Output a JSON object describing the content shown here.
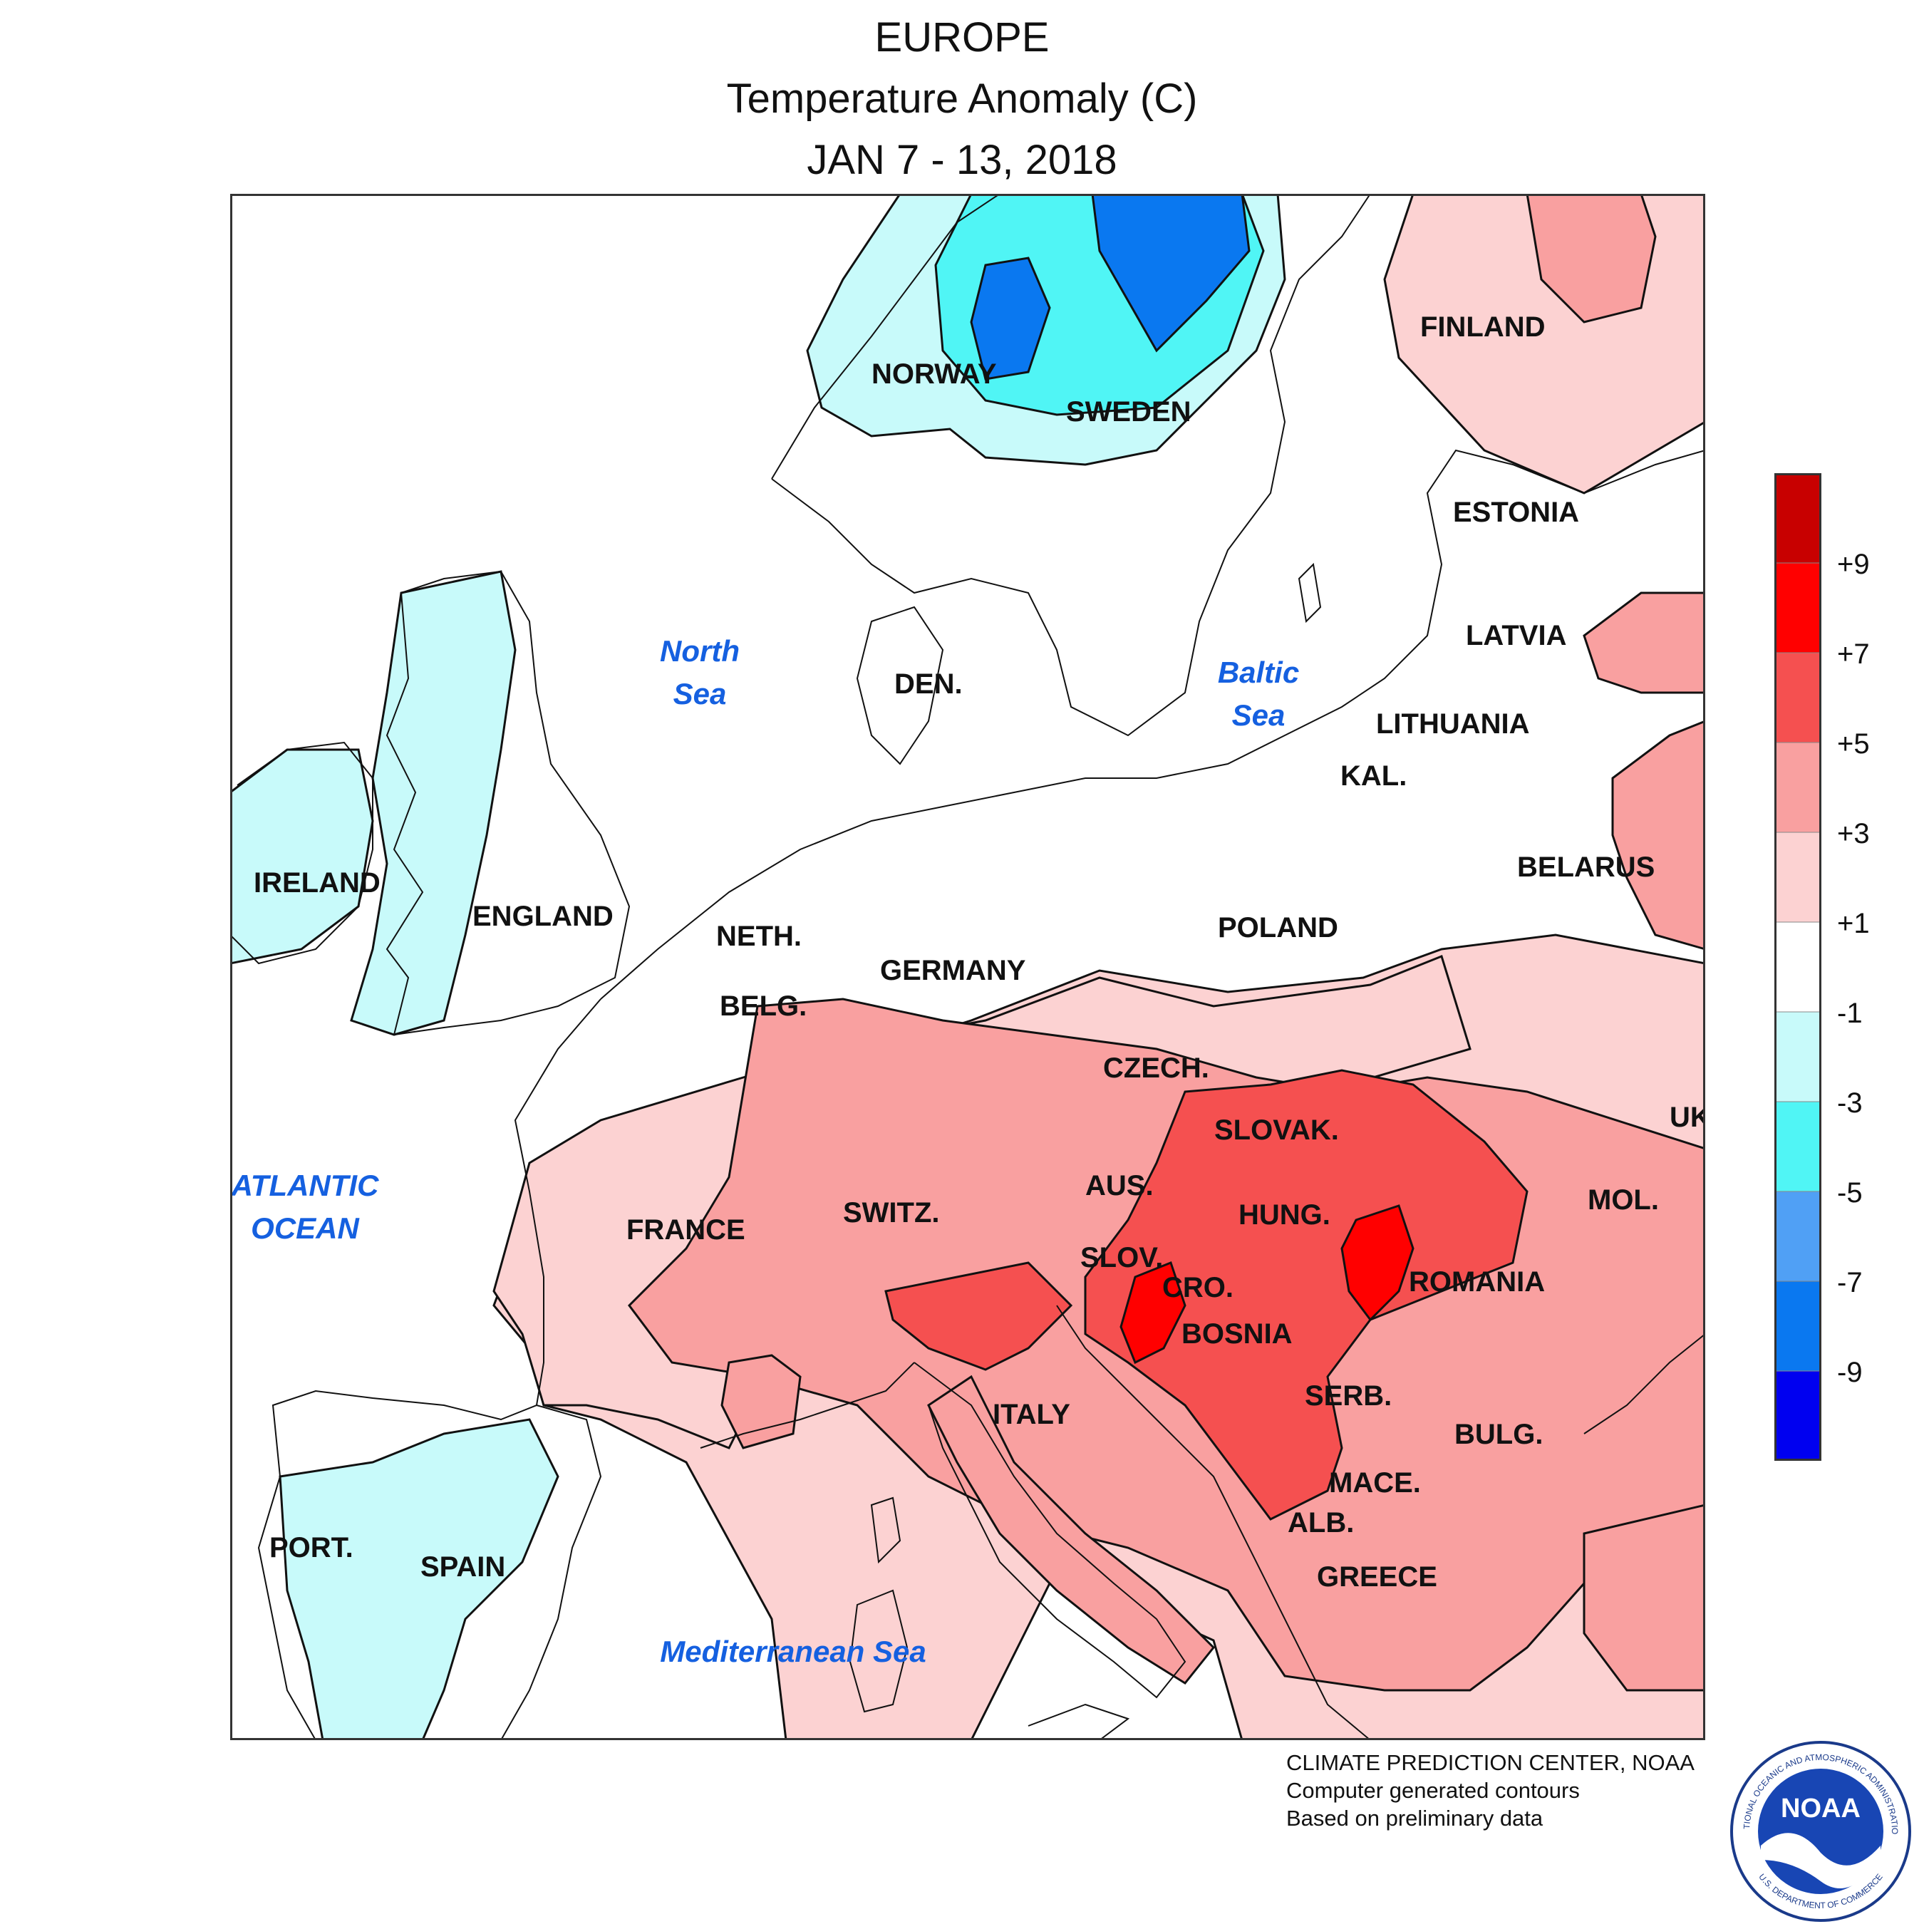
{
  "title": {
    "line1": "EUROPE",
    "line2": "Temperature Anomaly (C)",
    "line3": "JAN 7 - 13, 2018"
  },
  "countries": {
    "norway": "NORWAY",
    "sweden": "SWEDEN",
    "finland": "FINLAND",
    "estonia": "ESTONIA",
    "latvia": "LATVIA",
    "lithuania": "LITHUANIA",
    "kal": "KAL.",
    "belarus": "BELARUS",
    "poland": "POLAND",
    "den": "DEN.",
    "ireland": "IRELAND",
    "england": "ENGLAND",
    "neth": "NETH.",
    "belg": "BELG.",
    "germany": "GERMANY",
    "czech": "CZECH.",
    "slovak": "SLOVAK.",
    "aus": "AUS.",
    "hung": "HUNG.",
    "switz": "SWITZ.",
    "france": "FRANCE",
    "slov": "SLOV.",
    "cro": "CRO.",
    "bosnia": "BOSNIA",
    "romania": "ROMANIA",
    "mol": "MOL.",
    "uk": "UK",
    "serb": "SERB.",
    "bulg": "BULG.",
    "mace": "MACE.",
    "alb": "ALB.",
    "greece": "GREECE",
    "italy": "ITALY",
    "port": "PORT.",
    "spain": "SPAIN"
  },
  "seas": {
    "north_1": "North",
    "north_2": "Sea",
    "baltic_1": "Baltic",
    "baltic_2": "Sea",
    "atlantic_1": "ATLANTIC",
    "atlantic_2": "OCEAN",
    "med": "Mediterranean Sea"
  },
  "legend": {
    "labels": [
      "+9",
      "+7",
      "+5",
      "+3",
      "+1",
      "-1",
      "-3",
      "-5",
      "-7",
      "-9"
    ],
    "colors": [
      "#c80000",
      "#ff0000",
      "#f55050",
      "#f9a0a0",
      "#fcd2d2",
      "#ffffff",
      "#c8fafa",
      "#50f5f5",
      "#50a0f5",
      "#0a78f0",
      "#0000f0"
    ]
  },
  "colors": {
    "sea_label": "#1560e0"
  },
  "credits": {
    "line1": "CLIMATE PREDICTION CENTER, NOAA",
    "line2": "Computer generated contours",
    "line3": "Based on preliminary data"
  },
  "logo": {
    "text": "NOAA",
    "ring_top": "NATIONAL OCEANIC AND ATMOSPHERIC ADMINISTRATION",
    "ring_bottom": "U.S. DEPARTMENT OF COMMERCE"
  }
}
